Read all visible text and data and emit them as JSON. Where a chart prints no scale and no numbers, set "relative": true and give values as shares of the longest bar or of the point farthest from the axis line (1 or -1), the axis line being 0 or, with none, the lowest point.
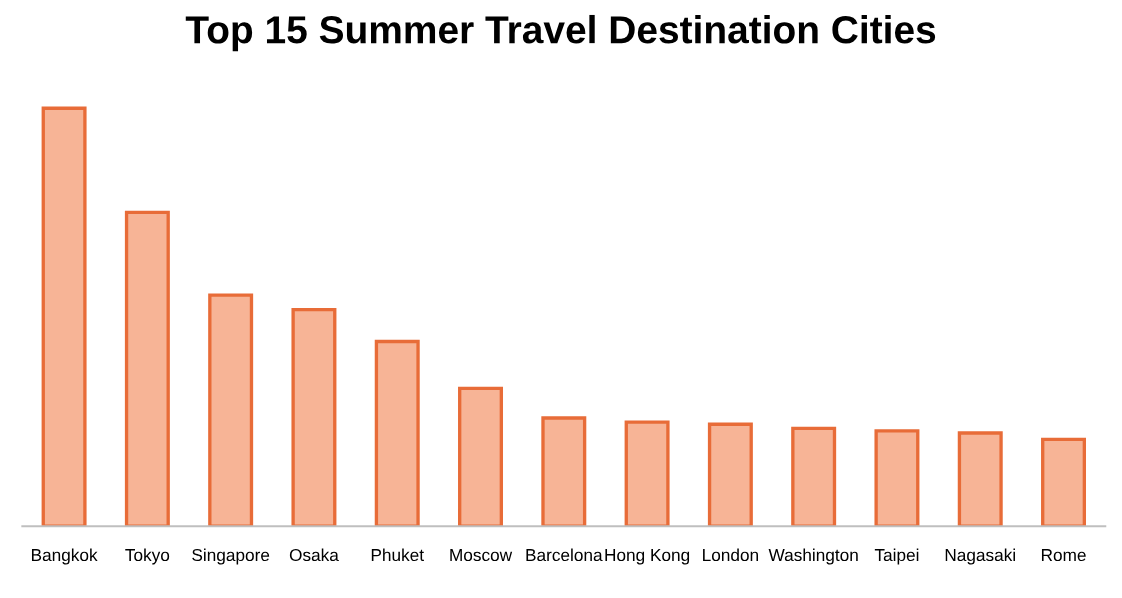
{
  "chart_data": {
    "type": "bar",
    "title": "Top 15 Summer Travel Destination Cities",
    "categories": [
      "Bangkok",
      "Tokyo",
      "Singapore",
      "Osaka",
      "Phuket",
      "Moscow",
      "Barcelona",
      "Hong Kong",
      "London",
      "Washington",
      "Taipei",
      "Nagasaki",
      "Rome"
    ],
    "values": [
      1,
      0.751,
      0.553,
      0.518,
      0.442,
      0.33,
      0.259,
      0.249,
      0.244,
      0.234,
      0.228,
      0.223,
      0.208
    ],
    "color": "#f7b496",
    "relative": true,
    "grid": false,
    "legend": false
  }
}
